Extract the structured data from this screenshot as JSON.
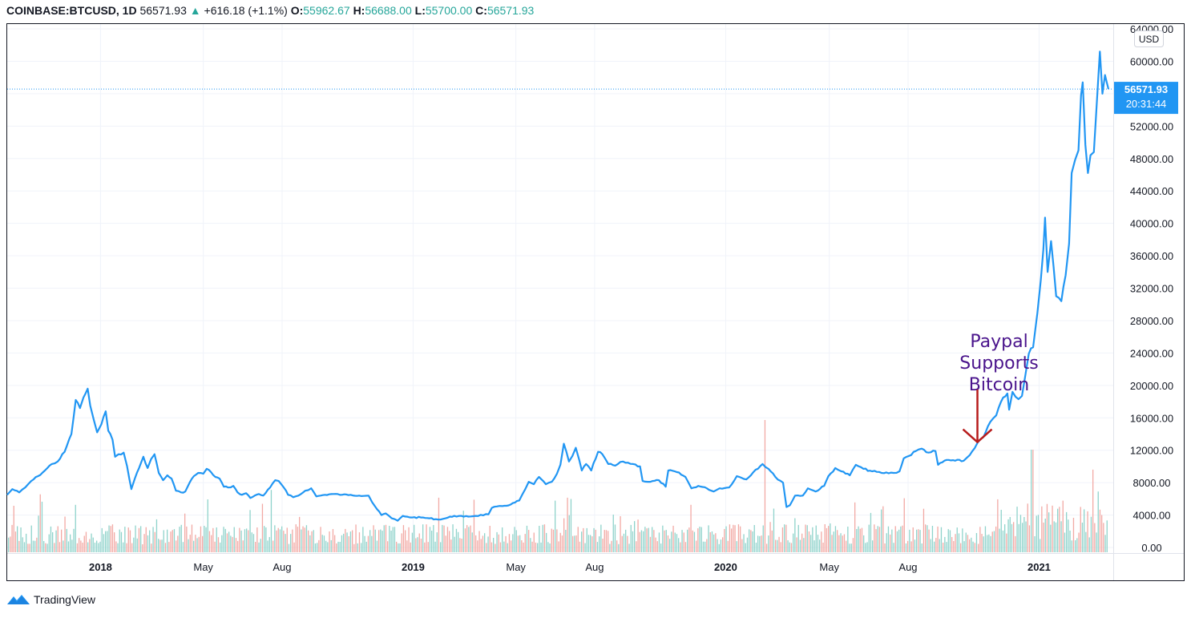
{
  "header": {
    "symbol": "COINBASE:BTCUSD, 1D",
    "last": "56571.93",
    "up_arrow": "▲",
    "change": "+616.18 (+1.1%)",
    "o_label": "O:",
    "o_value": "55962.67",
    "h_label": "H:",
    "h_value": "56688.00",
    "l_label": "L:",
    "l_value": "55700.00",
    "c_label": "C:",
    "c_value": "56571.93"
  },
  "footer": {
    "brand": "TradingView",
    "logo_icon": "tradingview-logo-icon"
  },
  "colors": {
    "line": "#2196f3",
    "up_volume": "#8fd3cb",
    "down_volume": "#f2a9a4",
    "annotation_text": "#4a148c",
    "arrow": "#b71c1c",
    "grid": "#f0f3fa"
  },
  "chart_data": {
    "type": "line",
    "title": "COINBASE:BTCUSD, 1D",
    "currency_label": "USD",
    "y_ticks": [
      "64000.00",
      "60000.00",
      "56000.00",
      "52000.00",
      "48000.00",
      "44000.00",
      "40000.00",
      "36000.00",
      "32000.00",
      "28000.00",
      "24000.00",
      "20000.00",
      "16000.00",
      "12000.00",
      "8000.00",
      "4000.00",
      "0.00"
    ],
    "ylim": [
      0,
      64000
    ],
    "x_ticks": [
      {
        "label": "2018",
        "date": "2018-01-01",
        "bold": true
      },
      {
        "label": "May",
        "date": "2018-05-01",
        "bold": false
      },
      {
        "label": "Aug",
        "date": "2018-08-01",
        "bold": false
      },
      {
        "label": "2019",
        "date": "2019-01-01",
        "bold": true
      },
      {
        "label": "May",
        "date": "2019-05-01",
        "bold": false
      },
      {
        "label": "Aug",
        "date": "2019-08-01",
        "bold": false
      },
      {
        "label": "2020",
        "date": "2020-01-01",
        "bold": true
      },
      {
        "label": "May",
        "date": "2020-05-01",
        "bold": false
      },
      {
        "label": "Aug",
        "date": "2020-08-01",
        "bold": false
      },
      {
        "label": "2021",
        "date": "2021-01-01",
        "bold": true
      }
    ],
    "xlim": [
      "2017-09-14",
      "2021-03-23"
    ],
    "last_price": {
      "value": 56571.93,
      "label": "56571.93",
      "countdown": "20:31:44"
    },
    "annotation": {
      "text_lines": [
        "Paypal",
        "Supports",
        "Bitcoin"
      ],
      "date": "2020-10-21",
      "price": 12800
    },
    "series": [
      {
        "name": "BTCUSD",
        "points": [
          [
            "2017-09-14",
            6500
          ],
          [
            "2017-09-20",
            7200
          ],
          [
            "2017-09-28",
            6800
          ],
          [
            "2017-10-05",
            7400
          ],
          [
            "2017-10-12",
            8200
          ],
          [
            "2017-10-20",
            8800
          ],
          [
            "2017-10-28",
            9500
          ],
          [
            "2017-11-05",
            10300
          ],
          [
            "2017-11-12",
            10600
          ],
          [
            "2017-11-20",
            11800
          ],
          [
            "2017-11-28",
            14000
          ],
          [
            "2017-12-03",
            18200
          ],
          [
            "2017-12-08",
            17200
          ],
          [
            "2017-12-12",
            18500
          ],
          [
            "2017-12-17",
            19600
          ],
          [
            "2017-12-20",
            17500
          ],
          [
            "2017-12-24",
            15800
          ],
          [
            "2017-12-28",
            14200
          ],
          [
            "2018-01-02",
            15200
          ],
          [
            "2018-01-07",
            16800
          ],
          [
            "2018-01-10",
            14400
          ],
          [
            "2018-01-15",
            13300
          ],
          [
            "2018-01-18",
            11200
          ],
          [
            "2018-01-22",
            11500
          ],
          [
            "2018-01-28",
            11700
          ],
          [
            "2018-02-01",
            10000
          ],
          [
            "2018-02-06",
            7200
          ],
          [
            "2018-02-10",
            8500
          ],
          [
            "2018-02-15",
            9800
          ],
          [
            "2018-02-20",
            11200
          ],
          [
            "2018-02-25",
            9800
          ],
          [
            "2018-03-01",
            10900
          ],
          [
            "2018-03-05",
            11500
          ],
          [
            "2018-03-10",
            9200
          ],
          [
            "2018-03-15",
            8300
          ],
          [
            "2018-03-20",
            8900
          ],
          [
            "2018-03-25",
            8500
          ],
          [
            "2018-03-30",
            7000
          ],
          [
            "2018-04-05",
            6800
          ],
          [
            "2018-04-10",
            6900
          ],
          [
            "2018-04-15",
            8000
          ],
          [
            "2018-04-20",
            8800
          ],
          [
            "2018-04-25",
            9200
          ],
          [
            "2018-05-01",
            9100
          ],
          [
            "2018-05-05",
            9700
          ],
          [
            "2018-05-10",
            9300
          ],
          [
            "2018-05-15",
            8700
          ],
          [
            "2018-05-20",
            8500
          ],
          [
            "2018-05-25",
            7500
          ],
          [
            "2018-05-30",
            7400
          ],
          [
            "2018-06-05",
            7600
          ],
          [
            "2018-06-10",
            6800
          ],
          [
            "2018-06-15",
            6500
          ],
          [
            "2018-06-20",
            6700
          ],
          [
            "2018-06-25",
            6100
          ],
          [
            "2018-06-30",
            6400
          ],
          [
            "2018-07-05",
            6600
          ],
          [
            "2018-07-10",
            6400
          ],
          [
            "2018-07-18",
            7400
          ],
          [
            "2018-07-24",
            8300
          ],
          [
            "2018-07-28",
            8200
          ],
          [
            "2018-08-03",
            7400
          ],
          [
            "2018-08-08",
            6500
          ],
          [
            "2018-08-14",
            6200
          ],
          [
            "2018-08-20",
            6400
          ],
          [
            "2018-08-28",
            7000
          ],
          [
            "2018-09-04",
            7300
          ],
          [
            "2018-09-10",
            6300
          ],
          [
            "2018-09-20",
            6500
          ],
          [
            "2018-09-30",
            6600
          ],
          [
            "2018-10-10",
            6500
          ],
          [
            "2018-10-20",
            6500
          ],
          [
            "2018-10-30",
            6400
          ],
          [
            "2018-11-10",
            6400
          ],
          [
            "2018-11-14",
            5600
          ],
          [
            "2018-11-20",
            4700
          ],
          [
            "2018-11-25",
            4000
          ],
          [
            "2018-11-30",
            4200
          ],
          [
            "2018-12-07",
            3600
          ],
          [
            "2018-12-14",
            3300
          ],
          [
            "2018-12-20",
            3900
          ],
          [
            "2018-12-25",
            3800
          ],
          [
            "2018-12-31",
            3700
          ],
          [
            "2019-01-10",
            3700
          ],
          [
            "2019-01-20",
            3600
          ],
          [
            "2019-01-30",
            3450
          ],
          [
            "2019-02-08",
            3600
          ],
          [
            "2019-02-18",
            3900
          ],
          [
            "2019-03-01",
            3800
          ],
          [
            "2019-03-15",
            3900
          ],
          [
            "2019-03-30",
            4100
          ],
          [
            "2019-04-03",
            4900
          ],
          [
            "2019-04-15",
            5100
          ],
          [
            "2019-04-25",
            5300
          ],
          [
            "2019-05-05",
            5800
          ],
          [
            "2019-05-12",
            7200
          ],
          [
            "2019-05-16",
            8100
          ],
          [
            "2019-05-22",
            7800
          ],
          [
            "2019-05-28",
            8700
          ],
          [
            "2019-06-05",
            7800
          ],
          [
            "2019-06-12",
            8100
          ],
          [
            "2019-06-18",
            9100
          ],
          [
            "2019-06-22",
            10200
          ],
          [
            "2019-06-26",
            12800
          ],
          [
            "2019-06-29",
            11800
          ],
          [
            "2019-07-02",
            10600
          ],
          [
            "2019-07-06",
            11300
          ],
          [
            "2019-07-10",
            12300
          ],
          [
            "2019-07-14",
            10800
          ],
          [
            "2019-07-17",
            9500
          ],
          [
            "2019-07-22",
            10300
          ],
          [
            "2019-07-28",
            9500
          ],
          [
            "2019-08-05",
            11800
          ],
          [
            "2019-08-10",
            11500
          ],
          [
            "2019-08-17",
            10300
          ],
          [
            "2019-08-25",
            10100
          ],
          [
            "2019-09-03",
            10600
          ],
          [
            "2019-09-15",
            10300
          ],
          [
            "2019-09-23",
            10000
          ],
          [
            "2019-09-26",
            8200
          ],
          [
            "2019-10-05",
            8100
          ],
          [
            "2019-10-15",
            8300
          ],
          [
            "2019-10-23",
            7500
          ],
          [
            "2019-10-26",
            9500
          ],
          [
            "2019-11-05",
            9300
          ],
          [
            "2019-11-15",
            8700
          ],
          [
            "2019-11-22",
            7300
          ],
          [
            "2019-11-30",
            7600
          ],
          [
            "2019-12-10",
            7300
          ],
          [
            "2019-12-18",
            6900
          ],
          [
            "2019-12-25",
            7300
          ],
          [
            "2020-01-05",
            7400
          ],
          [
            "2020-01-14",
            8800
          ],
          [
            "2020-01-25",
            8400
          ],
          [
            "2020-02-05",
            9600
          ],
          [
            "2020-02-13",
            10300
          ],
          [
            "2020-02-20",
            9700
          ],
          [
            "2020-02-28",
            8700
          ],
          [
            "2020-03-08",
            8000
          ],
          [
            "2020-03-12",
            5000
          ],
          [
            "2020-03-16",
            5200
          ],
          [
            "2020-03-22",
            6400
          ],
          [
            "2020-03-31",
            6400
          ],
          [
            "2020-04-06",
            7300
          ],
          [
            "2020-04-15",
            6900
          ],
          [
            "2020-04-25",
            7600
          ],
          [
            "2020-04-30",
            8800
          ],
          [
            "2020-05-08",
            9800
          ],
          [
            "2020-05-15",
            9400
          ],
          [
            "2020-05-25",
            8900
          ],
          [
            "2020-06-01",
            10200
          ],
          [
            "2020-06-10",
            9700
          ],
          [
            "2020-06-20",
            9400
          ],
          [
            "2020-07-01",
            9200
          ],
          [
            "2020-07-15",
            9200
          ],
          [
            "2020-07-22",
            9400
          ],
          [
            "2020-07-27",
            11000
          ],
          [
            "2020-08-02",
            11300
          ],
          [
            "2020-08-10",
            11900
          ],
          [
            "2020-08-17",
            12200
          ],
          [
            "2020-08-25",
            11700
          ],
          [
            "2020-09-02",
            11900
          ],
          [
            "2020-09-05",
            10200
          ],
          [
            "2020-09-15",
            10800
          ],
          [
            "2020-09-25",
            10700
          ],
          [
            "2020-10-05",
            10700
          ],
          [
            "2020-10-12",
            11400
          ],
          [
            "2020-10-21",
            12900
          ],
          [
            "2020-10-28",
            13600
          ],
          [
            "2020-11-05",
            15500
          ],
          [
            "2020-11-12",
            16300
          ],
          [
            "2020-11-20",
            18500
          ],
          [
            "2020-11-25",
            19000
          ],
          [
            "2020-11-27",
            17000
          ],
          [
            "2020-12-01",
            19200
          ],
          [
            "2020-12-08",
            18300
          ],
          [
            "2020-12-12",
            18700
          ],
          [
            "2020-12-16",
            21300
          ],
          [
            "2020-12-20",
            23900
          ],
          [
            "2020-12-25",
            24700
          ],
          [
            "2020-12-30",
            28900
          ],
          [
            "2021-01-03",
            33000
          ],
          [
            "2021-01-06",
            36800
          ],
          [
            "2021-01-08",
            40700
          ],
          [
            "2021-01-11",
            34000
          ],
          [
            "2021-01-15",
            37800
          ],
          [
            "2021-01-21",
            31000
          ],
          [
            "2021-01-27",
            30400
          ],
          [
            "2021-02-01",
            33600
          ],
          [
            "2021-02-05",
            37500
          ],
          [
            "2021-02-08",
            46200
          ],
          [
            "2021-02-12",
            47800
          ],
          [
            "2021-02-16",
            49000
          ],
          [
            "2021-02-19",
            55800
          ],
          [
            "2021-02-21",
            57400
          ],
          [
            "2021-02-24",
            49700
          ],
          [
            "2021-02-27",
            46200
          ],
          [
            "2021-03-02",
            48400
          ],
          [
            "2021-03-06",
            48800
          ],
          [
            "2021-03-10",
            55900
          ],
          [
            "2021-03-13",
            61200
          ],
          [
            "2021-03-16",
            56000
          ],
          [
            "2021-03-19",
            58300
          ],
          [
            "2021-03-21",
            57400
          ],
          [
            "2021-03-23",
            56571.93
          ]
        ]
      }
    ]
  }
}
